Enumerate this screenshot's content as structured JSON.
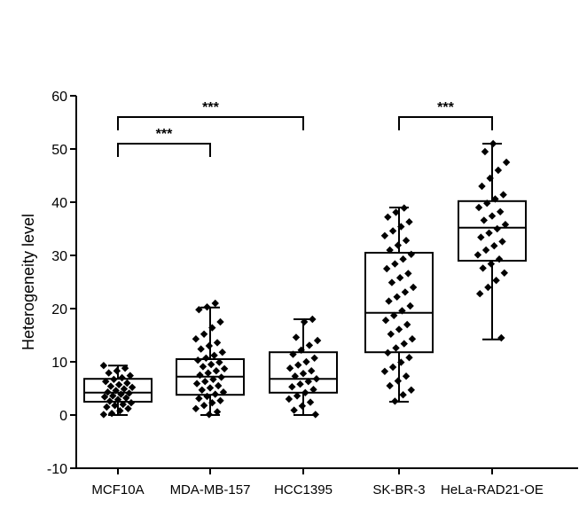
{
  "chart_data": {
    "type": "box",
    "title": "",
    "xlabel": "",
    "ylabel": "Heterogeneity level",
    "ylim": [
      -10,
      60
    ],
    "yticks": [
      -10,
      0,
      10,
      20,
      30,
      40,
      50,
      60
    ],
    "ytick_labels": [
      "-10",
      "0",
      "10",
      "20",
      "30",
      "40",
      "50",
      "60"
    ],
    "grid": false,
    "legend": "none",
    "categories": [
      "MCF10A",
      "MDA-MB-157",
      "HCC1395",
      "SK-BR-3",
      "HeLa-RAD21-OE"
    ],
    "boxes": [
      {
        "category": "MCF10A",
        "min": 0,
        "q1": 2.5,
        "median": 4.2,
        "q3": 6.8,
        "max": 9.3,
        "points": [
          0.1,
          0.3,
          0.8,
          1.2,
          1.5,
          1.8,
          2.0,
          2.3,
          2.6,
          2.9,
          3.2,
          3.4,
          3.6,
          3.9,
          4.1,
          4.3,
          4.6,
          4.9,
          5.2,
          5.4,
          5.7,
          6.0,
          6.3,
          6.7,
          7.0,
          7.4,
          7.9,
          8.3,
          8.8,
          9.3
        ]
      },
      {
        "category": "MDA-MB-157",
        "min": 0,
        "q1": 3.8,
        "median": 7.2,
        "q3": 10.5,
        "max": 20.2,
        "points": [
          0.1,
          0.6,
          1.2,
          1.8,
          2.3,
          2.7,
          3.1,
          3.5,
          3.9,
          4.3,
          4.7,
          5.1,
          5.5,
          5.9,
          6.3,
          6.7,
          7.1,
          7.5,
          7.9,
          8.3,
          8.7,
          9.1,
          9.5,
          9.9,
          10.3,
          10.7,
          11.2,
          11.8,
          12.4,
          13.0,
          13.6,
          14.3,
          15.2,
          16.4,
          17.5,
          19.8,
          20.3,
          21.0
        ]
      },
      {
        "category": "HCC1395",
        "min": 0,
        "q1": 4.2,
        "median": 6.8,
        "q3": 11.8,
        "max": 18.0,
        "points": [
          0.1,
          0.9,
          1.7,
          2.4,
          3.0,
          3.6,
          4.2,
          4.8,
          5.3,
          5.8,
          6.3,
          6.8,
          7.3,
          7.8,
          8.3,
          8.8,
          9.4,
          10.0,
          10.7,
          11.4,
          12.2,
          13.1,
          14.0,
          14.6,
          17.5,
          18.0
        ]
      },
      {
        "category": "SK-BR-3",
        "min": 2.5,
        "q1": 11.8,
        "median": 19.2,
        "q3": 30.5,
        "max": 39.0,
        "points": [
          2.6,
          3.8,
          4.7,
          5.5,
          6.4,
          7.3,
          8.2,
          9.0,
          9.9,
          10.8,
          11.7,
          12.6,
          13.4,
          14.3,
          15.2,
          16.1,
          17.0,
          17.8,
          18.7,
          19.6,
          20.5,
          21.4,
          22.2,
          23.1,
          24.0,
          24.9,
          25.8,
          26.6,
          27.5,
          28.4,
          29.3,
          30.2,
          31.0,
          31.9,
          32.8,
          33.7,
          34.6,
          35.4,
          36.3,
          37.2,
          38.1,
          38.9
        ]
      },
      {
        "category": "HeLa-RAD21-OE",
        "min": 14.2,
        "q1": 29.0,
        "median": 35.2,
        "q3": 40.2,
        "max": 51.0,
        "points": [
          14.5,
          22.8,
          24.0,
          25.3,
          26.7,
          27.6,
          28.4,
          29.3,
          30.1,
          31.0,
          31.8,
          32.6,
          33.4,
          34.2,
          35.0,
          35.8,
          36.6,
          37.4,
          38.2,
          39.0,
          39.8,
          40.6,
          41.4,
          43.0,
          44.5,
          46.0,
          47.5,
          49.5,
          51.0
        ]
      }
    ],
    "significance": [
      {
        "from": "MCF10A",
        "to": "MDA-MB-157",
        "y": 51,
        "label": "***"
      },
      {
        "from": "MCF10A",
        "to": "HCC1395",
        "y": 56,
        "label": "***"
      },
      {
        "from": "SK-BR-3",
        "to": "HeLa-RAD21-OE",
        "y": 56,
        "label": "***"
      }
    ]
  }
}
